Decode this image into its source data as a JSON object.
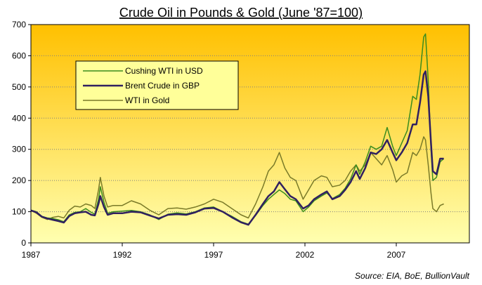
{
  "chart_data": {
    "type": "line",
    "title": "Crude Oil in Pounds & Gold (June '87=100)",
    "source": "Source: EIA, BoE, BullionVault",
    "xlim": [
      1987,
      2011
    ],
    "ylim": [
      0,
      700
    ],
    "xticks": [
      {
        "value": 1987,
        "label": "1987"
      },
      {
        "value": 1992,
        "label": "1992"
      },
      {
        "value": 1997,
        "label": "1997"
      },
      {
        "value": 2002,
        "label": "2002"
      },
      {
        "value": 2007,
        "label": "2007"
      }
    ],
    "yticks": [
      {
        "value": 0,
        "label": "0"
      },
      {
        "value": 100,
        "label": "100"
      },
      {
        "value": 200,
        "label": "200"
      },
      {
        "value": 300,
        "label": "300"
      },
      {
        "value": 400,
        "label": "400"
      },
      {
        "value": 500,
        "label": "500"
      },
      {
        "value": 600,
        "label": "600"
      },
      {
        "value": 700,
        "label": "700"
      }
    ],
    "colors": {
      "plot_top": "#ffc000",
      "plot_bottom": "#ffffb0",
      "grid": "#7f7f7f",
      "legend_bg": "#ffff99"
    },
    "series": [
      {
        "name": "Cushing WTI in USD",
        "color": "#3a8c1e",
        "width": 1.5,
        "points": [
          [
            1987.0,
            105
          ],
          [
            1987.3,
            100
          ],
          [
            1987.6,
            85
          ],
          [
            1987.9,
            80
          ],
          [
            1988.2,
            78
          ],
          [
            1988.5,
            74
          ],
          [
            1988.8,
            68
          ],
          [
            1989.1,
            90
          ],
          [
            1989.4,
            98
          ],
          [
            1989.7,
            100
          ],
          [
            1990.0,
            110
          ],
          [
            1990.3,
            98
          ],
          [
            1990.5,
            92
          ],
          [
            1990.7,
            140
          ],
          [
            1990.8,
            180
          ],
          [
            1991.0,
            130
          ],
          [
            1991.2,
            95
          ],
          [
            1991.5,
            100
          ],
          [
            1992.0,
            102
          ],
          [
            1992.5,
            104
          ],
          [
            1993.0,
            100
          ],
          [
            1993.5,
            90
          ],
          [
            1994.0,
            75
          ],
          [
            1994.5,
            92
          ],
          [
            1995.0,
            96
          ],
          [
            1995.5,
            93
          ],
          [
            1996.0,
            100
          ],
          [
            1996.5,
            112
          ],
          [
            1997.0,
            115
          ],
          [
            1997.5,
            100
          ],
          [
            1998.0,
            85
          ],
          [
            1998.5,
            68
          ],
          [
            1998.9,
            60
          ],
          [
            1999.3,
            88
          ],
          [
            1999.7,
            120
          ],
          [
            2000.0,
            140
          ],
          [
            2000.3,
            155
          ],
          [
            2000.6,
            170
          ],
          [
            2000.9,
            158
          ],
          [
            2001.2,
            140
          ],
          [
            2001.5,
            135
          ],
          [
            2001.9,
            100
          ],
          [
            2002.2,
            115
          ],
          [
            2002.5,
            135
          ],
          [
            2002.9,
            150
          ],
          [
            2003.2,
            160
          ],
          [
            2003.5,
            142
          ],
          [
            2003.9,
            155
          ],
          [
            2004.2,
            175
          ],
          [
            2004.5,
            205
          ],
          [
            2004.8,
            250
          ],
          [
            2005.0,
            220
          ],
          [
            2005.3,
            260
          ],
          [
            2005.6,
            310
          ],
          [
            2005.9,
            300
          ],
          [
            2006.2,
            310
          ],
          [
            2006.5,
            370
          ],
          [
            2006.8,
            310
          ],
          [
            2007.0,
            280
          ],
          [
            2007.3,
            320
          ],
          [
            2007.6,
            360
          ],
          [
            2007.9,
            470
          ],
          [
            2008.1,
            460
          ],
          [
            2008.3,
            540
          ],
          [
            2008.5,
            660
          ],
          [
            2008.6,
            670
          ],
          [
            2008.75,
            520
          ],
          [
            2008.9,
            300
          ],
          [
            2009.0,
            200
          ],
          [
            2009.2,
            210
          ],
          [
            2009.4,
            260
          ],
          [
            2009.6,
            270
          ]
        ]
      },
      {
        "name": "Brent Crude in GBP",
        "color": "#302060",
        "width": 2.5,
        "points": [
          [
            1987.0,
            104
          ],
          [
            1987.3,
            98
          ],
          [
            1987.6,
            84
          ],
          [
            1987.9,
            78
          ],
          [
            1988.2,
            74
          ],
          [
            1988.5,
            70
          ],
          [
            1988.8,
            65
          ],
          [
            1989.1,
            86
          ],
          [
            1989.4,
            95
          ],
          [
            1989.7,
            98
          ],
          [
            1990.0,
            100
          ],
          [
            1990.3,
            90
          ],
          [
            1990.5,
            88
          ],
          [
            1990.7,
            125
          ],
          [
            1990.8,
            150
          ],
          [
            1991.0,
            115
          ],
          [
            1991.2,
            90
          ],
          [
            1991.5,
            95
          ],
          [
            1992.0,
            95
          ],
          [
            1992.5,
            100
          ],
          [
            1993.0,
            98
          ],
          [
            1993.5,
            88
          ],
          [
            1994.0,
            78
          ],
          [
            1994.5,
            90
          ],
          [
            1995.0,
            92
          ],
          [
            1995.5,
            90
          ],
          [
            1996.0,
            98
          ],
          [
            1996.5,
            110
          ],
          [
            1997.0,
            112
          ],
          [
            1997.5,
            100
          ],
          [
            1998.0,
            82
          ],
          [
            1998.5,
            66
          ],
          [
            1998.9,
            58
          ],
          [
            1999.3,
            90
          ],
          [
            1999.7,
            125
          ],
          [
            2000.0,
            150
          ],
          [
            2000.3,
            165
          ],
          [
            2000.6,
            195
          ],
          [
            2000.9,
            172
          ],
          [
            2001.2,
            150
          ],
          [
            2001.5,
            140
          ],
          [
            2001.9,
            110
          ],
          [
            2002.2,
            120
          ],
          [
            2002.5,
            140
          ],
          [
            2002.9,
            155
          ],
          [
            2003.2,
            165
          ],
          [
            2003.5,
            140
          ],
          [
            2003.9,
            150
          ],
          [
            2004.2,
            170
          ],
          [
            2004.5,
            195
          ],
          [
            2004.8,
            230
          ],
          [
            2005.0,
            205
          ],
          [
            2005.3,
            240
          ],
          [
            2005.6,
            290
          ],
          [
            2005.9,
            285
          ],
          [
            2006.2,
            300
          ],
          [
            2006.5,
            330
          ],
          [
            2006.8,
            290
          ],
          [
            2007.0,
            265
          ],
          [
            2007.3,
            290
          ],
          [
            2007.6,
            320
          ],
          [
            2007.9,
            380
          ],
          [
            2008.1,
            380
          ],
          [
            2008.3,
            450
          ],
          [
            2008.5,
            540
          ],
          [
            2008.6,
            550
          ],
          [
            2008.75,
            470
          ],
          [
            2008.9,
            320
          ],
          [
            2009.0,
            230
          ],
          [
            2009.2,
            220
          ],
          [
            2009.4,
            270
          ],
          [
            2009.6,
            270
          ]
        ]
      },
      {
        "name": "WTI in Gold",
        "color": "#7a7a28",
        "width": 1.5,
        "points": [
          [
            1987.0,
            105
          ],
          [
            1987.3,
            95
          ],
          [
            1987.6,
            82
          ],
          [
            1987.9,
            75
          ],
          [
            1988.2,
            82
          ],
          [
            1988.5,
            85
          ],
          [
            1988.8,
            80
          ],
          [
            1989.1,
            105
          ],
          [
            1989.4,
            118
          ],
          [
            1989.7,
            115
          ],
          [
            1990.0,
            125
          ],
          [
            1990.3,
            120
          ],
          [
            1990.5,
            110
          ],
          [
            1990.7,
            170
          ],
          [
            1990.8,
            210
          ],
          [
            1991.0,
            150
          ],
          [
            1991.2,
            115
          ],
          [
            1991.5,
            120
          ],
          [
            1992.0,
            120
          ],
          [
            1992.5,
            135
          ],
          [
            1993.0,
            125
          ],
          [
            1993.5,
            105
          ],
          [
            1994.0,
            90
          ],
          [
            1994.5,
            110
          ],
          [
            1995.0,
            112
          ],
          [
            1995.5,
            108
          ],
          [
            1996.0,
            115
          ],
          [
            1996.5,
            125
          ],
          [
            1997.0,
            140
          ],
          [
            1997.5,
            130
          ],
          [
            1998.0,
            110
          ],
          [
            1998.5,
            90
          ],
          [
            1998.9,
            80
          ],
          [
            1999.3,
            125
          ],
          [
            1999.7,
            180
          ],
          [
            2000.0,
            230
          ],
          [
            2000.3,
            250
          ],
          [
            2000.6,
            290
          ],
          [
            2000.9,
            240
          ],
          [
            2001.2,
            210
          ],
          [
            2001.5,
            200
          ],
          [
            2001.9,
            140
          ],
          [
            2002.2,
            170
          ],
          [
            2002.5,
            200
          ],
          [
            2002.9,
            215
          ],
          [
            2003.2,
            210
          ],
          [
            2003.5,
            180
          ],
          [
            2003.9,
            185
          ],
          [
            2004.2,
            200
          ],
          [
            2004.5,
            230
          ],
          [
            2004.8,
            250
          ],
          [
            2005.0,
            230
          ],
          [
            2005.3,
            250
          ],
          [
            2005.6,
            290
          ],
          [
            2005.9,
            270
          ],
          [
            2006.2,
            250
          ],
          [
            2006.5,
            280
          ],
          [
            2006.8,
            235
          ],
          [
            2007.0,
            195
          ],
          [
            2007.3,
            215
          ],
          [
            2007.6,
            225
          ],
          [
            2007.9,
            290
          ],
          [
            2008.1,
            280
          ],
          [
            2008.3,
            300
          ],
          [
            2008.5,
            340
          ],
          [
            2008.6,
            330
          ],
          [
            2008.75,
            250
          ],
          [
            2008.9,
            160
          ],
          [
            2009.0,
            110
          ],
          [
            2009.2,
            100
          ],
          [
            2009.4,
            120
          ],
          [
            2009.6,
            125
          ]
        ]
      }
    ]
  }
}
